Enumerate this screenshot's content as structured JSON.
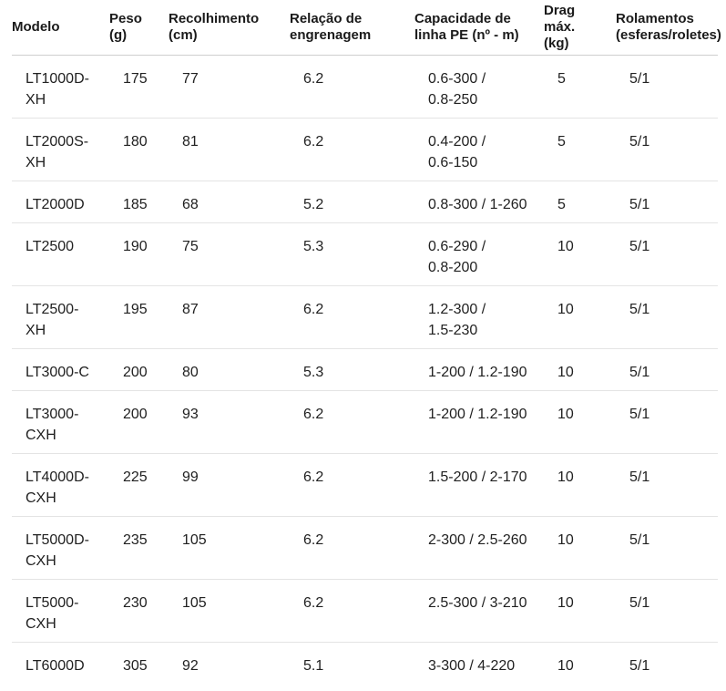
{
  "table": {
    "columns": [
      {
        "key": "modelo",
        "label": "Modelo"
      },
      {
        "key": "peso",
        "label": "Peso\n(g)"
      },
      {
        "key": "recolhimento",
        "label": "Recolhimento\n(cm)"
      },
      {
        "key": "relacao",
        "label": "Relação de\nengrenagem"
      },
      {
        "key": "capacidade",
        "label": "Capacidade de\nlinha PE (nº - m)"
      },
      {
        "key": "drag",
        "label": "Drag\nmáx.\n(kg)"
      },
      {
        "key": "rolamentos",
        "label": "Rolamentos\n(esferas/roletes)"
      }
    ],
    "rows": [
      {
        "modelo": "LT1000D-\nXH",
        "peso": "175",
        "recolhimento": "77",
        "relacao": "6.2",
        "capacidade": "0.6-300 /\n0.8-250",
        "drag": "5",
        "rolamentos": "5/1"
      },
      {
        "modelo": "LT2000S-\nXH",
        "peso": "180",
        "recolhimento": "81",
        "relacao": "6.2",
        "capacidade": "0.4-200 /\n0.6-150",
        "drag": "5",
        "rolamentos": "5/1"
      },
      {
        "modelo": "LT2000D",
        "peso": "185",
        "recolhimento": "68",
        "relacao": "5.2",
        "capacidade": "0.8-300 / 1-260",
        "drag": "5",
        "rolamentos": "5/1"
      },
      {
        "modelo": "LT2500",
        "peso": "190",
        "recolhimento": "75",
        "relacao": "5.3",
        "capacidade": "0.6-290 /\n0.8-200",
        "drag": "10",
        "rolamentos": "5/1"
      },
      {
        "modelo": "LT2500-\nXH",
        "peso": "195",
        "recolhimento": "87",
        "relacao": "6.2",
        "capacidade": "1.2-300 /\n1.5-230",
        "drag": "10",
        "rolamentos": "5/1"
      },
      {
        "modelo": "LT3000-C",
        "peso": "200",
        "recolhimento": "80",
        "relacao": "5.3",
        "capacidade": "1-200 / 1.2-190",
        "drag": "10",
        "rolamentos": "5/1"
      },
      {
        "modelo": "LT3000-\nCXH",
        "peso": "200",
        "recolhimento": "93",
        "relacao": "6.2",
        "capacidade": "1-200 / 1.2-190",
        "drag": "10",
        "rolamentos": "5/1"
      },
      {
        "modelo": "LT4000D-\nCXH",
        "peso": "225",
        "recolhimento": "99",
        "relacao": "6.2",
        "capacidade": "1.5-200 / 2-170",
        "drag": "10",
        "rolamentos": "5/1"
      },
      {
        "modelo": "LT5000D-\nCXH",
        "peso": "235",
        "recolhimento": "105",
        "relacao": "6.2",
        "capacidade": "2-300 / 2.5-260",
        "drag": "10",
        "rolamentos": "5/1"
      },
      {
        "modelo": "LT5000-\nCXH",
        "peso": "230",
        "recolhimento": "105",
        "relacao": "6.2",
        "capacidade": "2.5-300 / 3-210",
        "drag": "10",
        "rolamentos": "5/1"
      },
      {
        "modelo": "LT6000D",
        "peso": "305",
        "recolhimento": "92",
        "relacao": "5.1",
        "capacidade": "3-300 / 4-220",
        "drag": "10",
        "rolamentos": "5/1"
      }
    ],
    "colors": {
      "header_border": "#cfcfcf",
      "row_border": "#e4e4e4",
      "text": "#212121",
      "background": "#ffffff"
    }
  }
}
